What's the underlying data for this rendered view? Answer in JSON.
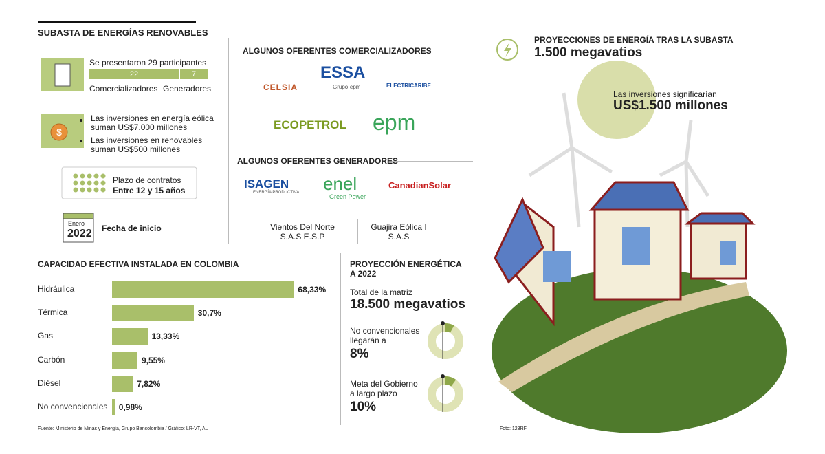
{
  "title": "SUBASTA DE ENERGÍAS RENOVABLES",
  "participants": {
    "text": "Se presentaron 29 participantes",
    "segments": [
      {
        "name": "Comercializadores",
        "value": 22
      },
      {
        "name": "Generadores",
        "value": 7
      }
    ]
  },
  "investments": [
    "Las inversiones en energía eólica suman US$7.000 millones",
    "Las inversiones en renovables suman US$500 millones"
  ],
  "contract": {
    "label": "Plazo de contratos",
    "value": "Entre 12 y 15 años"
  },
  "start": {
    "month": "Enero",
    "year": "2022",
    "label": "Fecha de inicio"
  },
  "marketers": {
    "title": "ALGUNOS OFERENTES COMERCIALIZADORES",
    "logos": [
      {
        "name": "CELSIA"
      },
      {
        "name": "ESSA",
        "sub": "Grupo·epm"
      },
      {
        "name": "ELECTRICARIBE"
      },
      {
        "name": "ECOPETROL"
      },
      {
        "name": "epm"
      }
    ]
  },
  "generators": {
    "title": "ALGUNOS OFERENTES GENERADORES",
    "logos": [
      {
        "name": "ISAGEN",
        "sub": "ENERGÍA PRODUCTIVA"
      },
      {
        "name": "enel",
        "sub": "Green Power"
      },
      {
        "name": "CanadianSolar"
      }
    ],
    "others": [
      [
        "Vientos Del Norte",
        "S.A.S E.S.P"
      ],
      [
        "Guajira Eólica I",
        "S.A.S"
      ]
    ]
  },
  "projections": {
    "title": "PROYECCIONES DE ENERGÍA TRAS LA SUBASTA",
    "value": "1.500 megavatios",
    "investment_label": "Las inversiones significarían",
    "investment_value": "US$1.500 millones"
  },
  "chart_data": {
    "type": "bar",
    "title": "CAPACIDAD EFECTIVA INSTALADA EN COLOMBIA",
    "categories": [
      "Hidráulica",
      "Térmica",
      "Gas",
      "Carbón",
      "Diésel",
      "No convencionales"
    ],
    "values": [
      68.33,
      30.7,
      13.33,
      9.55,
      7.82,
      0.98
    ],
    "value_labels": [
      "68,33%",
      "30,7%",
      "13,33%",
      "9,55%",
      "7,82%",
      "0,98%"
    ],
    "color": "#a9bf6a"
  },
  "energy2022": {
    "title": [
      "PROYECCIÓN ENERGÉTICA",
      "A 2022"
    ],
    "total_label": "Total de la matriz",
    "total_value": "18.500 megavatios",
    "donuts": [
      {
        "label": [
          "No convencionales",
          "llegarán a"
        ],
        "value": 8,
        "value_label": "8%"
      },
      {
        "label": [
          "Meta del Gobierno",
          "a largo plazo"
        ],
        "value": 10,
        "value_label": "10%"
      }
    ]
  },
  "source": "Fuente: Ministerio de Minas y Energía, Grupo Bancolombia / Gráfico: LR-VT, AL",
  "photo_credit": "Foto: 123RF"
}
